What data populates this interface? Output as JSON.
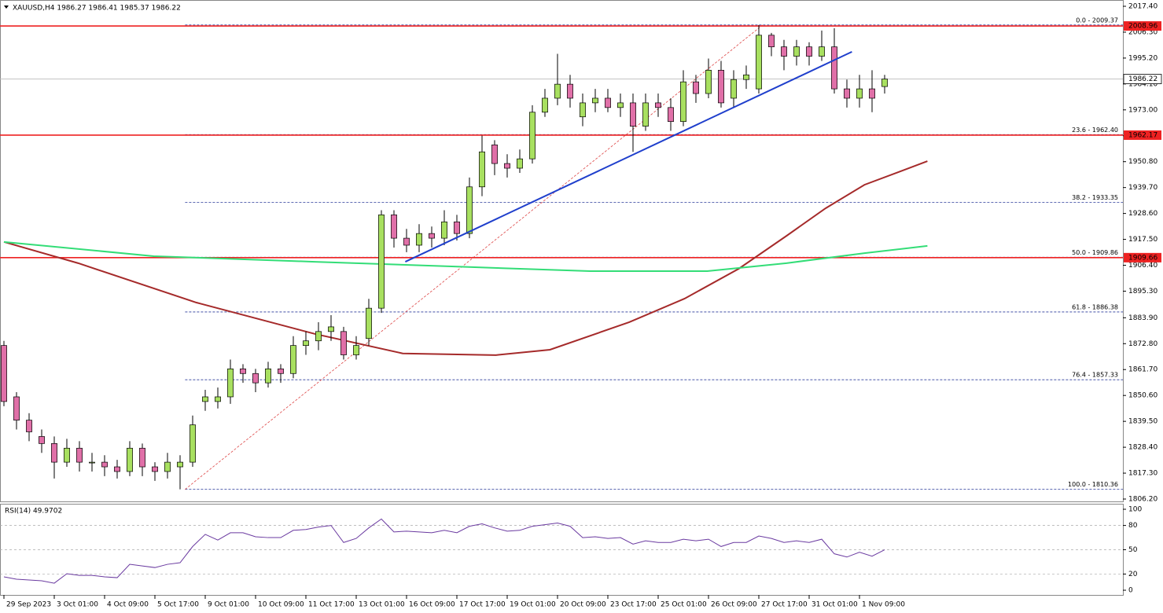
{
  "chart_data": [
    {
      "type": "candlestick",
      "title": "XAUUSD,H4  1986.27 1986.41 1985.37 1986.22",
      "up_color": "#a8e060",
      "down_color": "#e070a8",
      "open": [
        1872,
        1850,
        1840,
        1833,
        1830,
        1822,
        1828,
        1822,
        1822,
        1820,
        1818,
        1828,
        1820,
        1818,
        1820,
        1822,
        1848,
        1848,
        1850,
        1862,
        1860,
        1856,
        1862,
        1860,
        1872,
        1874,
        1878,
        1878,
        1868,
        1875,
        1888,
        1928,
        1918,
        1915,
        1920,
        1918,
        1925,
        1920,
        1940,
        1958,
        1950,
        1948,
        1952,
        1972,
        1978,
        1984,
        1970,
        1976,
        1978,
        1974,
        1976,
        1966,
        1976,
        1974,
        1968,
        1985,
        1980,
        1990,
        1978,
        1986,
        1982,
        2005,
        2000,
        1996,
        2000,
        1996,
        2000,
        1982,
        1978,
        1982,
        1983
      ],
      "high": [
        1874,
        1852,
        1843,
        1836,
        1833,
        1832,
        1831,
        1826,
        1825,
        1823,
        1831,
        1830,
        1822,
        1826,
        1825,
        1842,
        1853,
        1854,
        1866,
        1864,
        1862,
        1865,
        1864,
        1876,
        1878,
        1882,
        1885,
        1880,
        1876,
        1892,
        1930,
        1930,
        1922,
        1924,
        1923,
        1930,
        1928,
        1944,
        1962,
        1960,
        1954,
        1956,
        1975,
        1982,
        1997,
        1988,
        1980,
        1982,
        1982,
        1980,
        1980,
        1980,
        1980,
        1978,
        1990,
        1988,
        1995,
        1994,
        1990,
        1992,
        2009.37,
        2006,
        2003,
        2003,
        2002,
        2007,
        2008,
        1986,
        1988,
        1990,
        1988
      ],
      "low": [
        1846,
        1836,
        1831,
        1826,
        1815,
        1820,
        1818,
        1818,
        1816,
        1815,
        1816,
        1816,
        1814,
        1815,
        1810.36,
        1820,
        1844,
        1845,
        1847,
        1856,
        1852,
        1854,
        1856,
        1858,
        1868,
        1870,
        1874,
        1866,
        1866,
        1872,
        1886,
        1914,
        1912,
        1912,
        1914,
        1915,
        1917,
        1918,
        1936,
        1945,
        1944,
        1946,
        1950,
        1970,
        1975,
        1974,
        1966,
        1972,
        1972,
        1970,
        1955,
        1964,
        1970,
        1964,
        1966,
        1976,
        1978,
        1974,
        1974,
        1982,
        1980,
        1996,
        1990,
        1992,
        1992,
        1994,
        1980,
        1974,
        1974,
        1972,
        1980
      ],
      "close": [
        1848,
        1840,
        1835,
        1830,
        1822,
        1828,
        1822,
        1822,
        1820,
        1818,
        1828,
        1820,
        1818,
        1822,
        1822,
        1838,
        1850,
        1850,
        1862,
        1860,
        1856,
        1862,
        1860,
        1872,
        1874,
        1878,
        1880,
        1868,
        1872,
        1888,
        1928,
        1918,
        1915,
        1920,
        1918,
        1925,
        1920,
        1940,
        1955,
        1950,
        1948,
        1952,
        1972,
        1978,
        1984,
        1978,
        1976,
        1978,
        1974,
        1976,
        1966,
        1976,
        1974,
        1968,
        1985,
        1980,
        1990,
        1976,
        1986,
        1988,
        2005,
        2000,
        1996,
        2000,
        1996,
        2000,
        1982,
        1978,
        1982,
        1978,
        1986.22
      ],
      "xlim": [
        -0.3125,
        88.9375
      ],
      "xticks": [
        {
          "value": 0,
          "label": "29 Sep 2023"
        },
        {
          "value": 4,
          "label": "3 Oct 01:00"
        },
        {
          "value": 8,
          "label": "4 Oct 09:00"
        },
        {
          "value": 12,
          "label": "5 Oct 17:00"
        },
        {
          "value": 16,
          "label": "9 Oct 01:00"
        },
        {
          "value": 20,
          "label": "10 Oct 09:00"
        },
        {
          "value": 24,
          "label": "11 Oct 17:00"
        },
        {
          "value": 28,
          "label": "13 Oct 01:00"
        },
        {
          "value": 32,
          "label": "16 Oct 09:00"
        },
        {
          "value": 36,
          "label": "17 Oct 17:00"
        },
        {
          "value": 40,
          "label": "19 Oct 01:00"
        },
        {
          "value": 44,
          "label": "20 Oct 09:00"
        },
        {
          "value": 48,
          "label": "23 Oct 17:00"
        },
        {
          "value": 52,
          "label": "25 Oct 01:00"
        },
        {
          "value": 56,
          "label": "26 Oct 09:00"
        },
        {
          "value": 60,
          "label": "27 Oct 17:00"
        },
        {
          "value": 64,
          "label": "31 Oct 01:00"
        },
        {
          "value": 68,
          "label": "1 Nov 09:00"
        }
      ],
      "ylim": [
        1805.19,
        2020.09
      ],
      "yticks": [
        {
          "value": 2017.4,
          "label": "2017.40"
        },
        {
          "value": 2006.3,
          "label": "2006.30"
        },
        {
          "value": 1995.2,
          "label": "1995.20"
        },
        {
          "value": 1984.1,
          "label": "1984.10"
        },
        {
          "value": 1973,
          "label": "1973.00"
        },
        {
          "value": 1961.9,
          "label": "1961.90"
        },
        {
          "value": 1950.8,
          "label": "1950.80"
        },
        {
          "value": 1939.7,
          "label": "1939.70"
        },
        {
          "value": 1928.6,
          "label": "1928.60"
        },
        {
          "value": 1917.5,
          "label": "1917.50"
        },
        {
          "value": 1906.4,
          "label": "1906.40"
        },
        {
          "value": 1895.3,
          "label": "1895.30"
        },
        {
          "value": 1883.9,
          "label": "1883.90"
        },
        {
          "value": 1872.8,
          "label": "1872.80"
        },
        {
          "value": 1861.7,
          "label": "1861.70"
        },
        {
          "value": 1850.6,
          "label": "1850.60"
        },
        {
          "value": 1839.5,
          "label": "1839.50"
        },
        {
          "value": 1828.4,
          "label": "1828.40"
        },
        {
          "value": 1817.3,
          "label": "1817.30"
        },
        {
          "value": 1806.2,
          "label": "1806.20"
        }
      ],
      "moving_averages": [
        {
          "color": "#a52a2a",
          "x": [
            0,
            5.9,
            15.3,
            24.7,
            31.7,
            39.1,
            43.4,
            49.7,
            54.1,
            58.4,
            62.2,
            65.3,
            68.4,
            73.4
          ],
          "values": [
            1916.4,
            1907.3,
            1890.4,
            1877.0,
            1868.6,
            1867.9,
            1870.2,
            1882.0,
            1892.1,
            1904.9,
            1919.0,
            1930.8,
            1940.9,
            1951.0
          ]
        },
        {
          "color": "#33dd77",
          "x": [
            0,
            11.9,
            24.7,
            37.2,
            46.6,
            55.9,
            62.2,
            68.4,
            73.4
          ],
          "values": [
            1916.4,
            1910.3,
            1907.9,
            1905.6,
            1903.9,
            1903.9,
            1907.3,
            1911.6,
            1914.7
          ]
        }
      ],
      "trendline": {
        "color": "#1f3fcc",
        "x": [
          31.9,
          67.4
        ],
        "values": [
          1907.9,
          1997.9
        ]
      },
      "levels": [
        {
          "value": 2008.96,
          "label": "2008.96"
        },
        {
          "value": 1962.17,
          "label": "1962.17"
        },
        {
          "value": 1909.66,
          "label": "1909.66"
        }
      ],
      "level_color": "#ee2222",
      "last_price": {
        "value": 1986.22,
        "label": "1986.22"
      },
      "fib": {
        "color": "#2a3a9a",
        "line_color": "#dd4444",
        "x": [
          14.4,
          60.3
        ],
        "values": [
          1810.36,
          2009.37
        ],
        "levels": [
          {
            "value": 2009.37,
            "label": "0.0 - 2009.37"
          },
          {
            "value": 1962.4,
            "label": "23.6 - 1962.40"
          },
          {
            "value": 1933.35,
            "label": "38.2 - 1933.35"
          },
          {
            "value": 1909.86,
            "label": "50.0 - 1909.86"
          },
          {
            "value": 1886.38,
            "label": "61.8 - 1886.38"
          },
          {
            "value": 1857.33,
            "label": "76.4 - 1857.33"
          },
          {
            "value": 1810.36,
            "label": "100.0 - 1810.36"
          }
        ]
      }
    },
    {
      "type": "line",
      "title": "RSI(14) 49.9702",
      "color": "#6a3aa0",
      "values": [
        16.5,
        13.6,
        12.6,
        11.7,
        8.7,
        20.4,
        18.4,
        18.4,
        16.5,
        15.5,
        32,
        30,
        28,
        32,
        34,
        54,
        69,
        62,
        71,
        71,
        66,
        65,
        65,
        74,
        75,
        78,
        80,
        59,
        64,
        77,
        88,
        72,
        73,
        72,
        71,
        74,
        71,
        79,
        82,
        77,
        73,
        74,
        79,
        81,
        83,
        79,
        65,
        66,
        64,
        65,
        57,
        61,
        59,
        59,
        63,
        61,
        63,
        54,
        59,
        59,
        67,
        64,
        59,
        61,
        59,
        63,
        45,
        41,
        47,
        42,
        49.97
      ],
      "ylim": [
        -5.8,
        106.8
      ],
      "yticks": [
        100,
        80,
        50,
        20,
        0
      ]
    }
  ]
}
